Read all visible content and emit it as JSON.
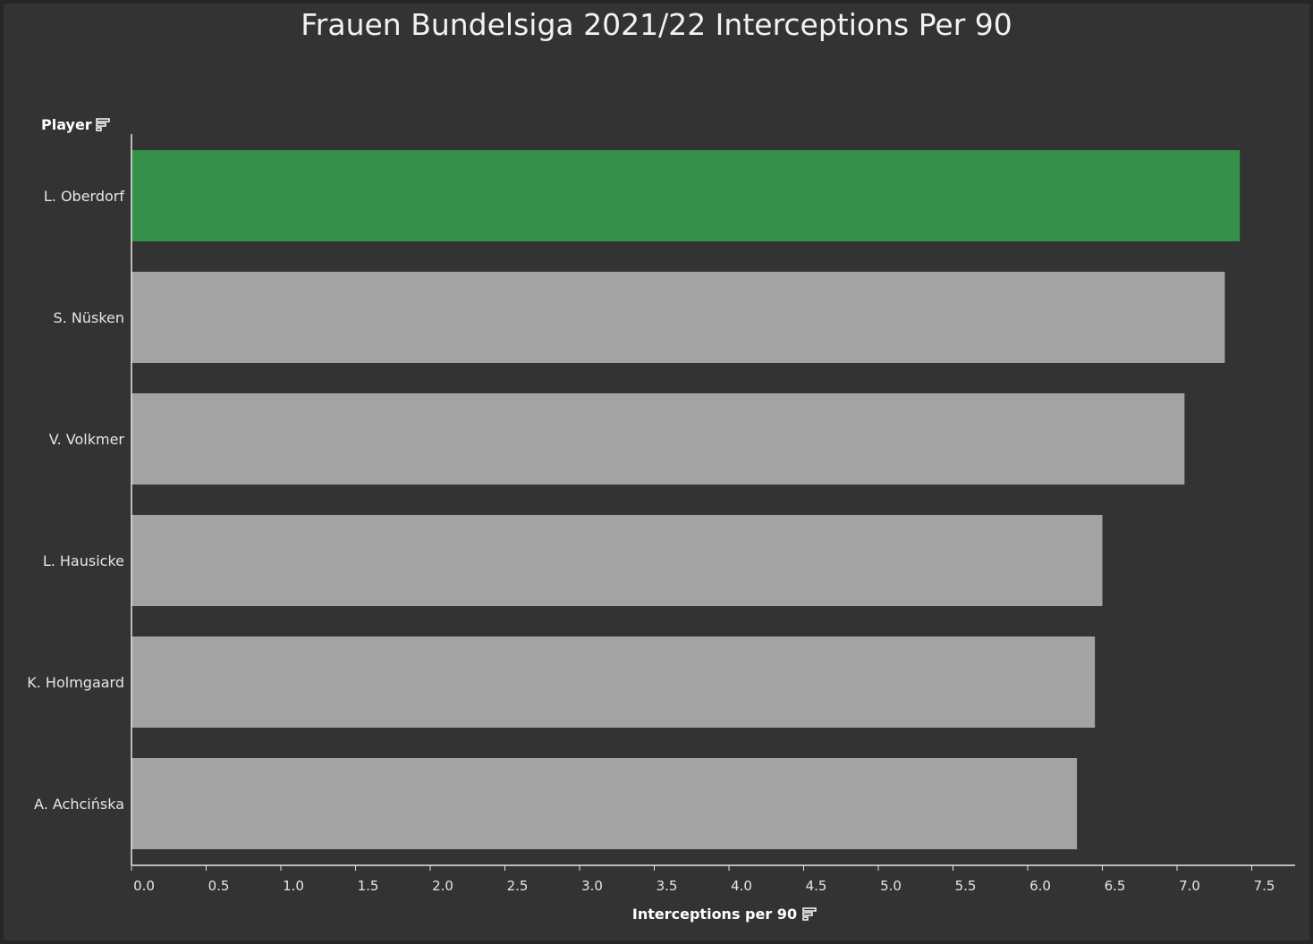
{
  "chart_data": {
    "type": "bar",
    "orientation": "horizontal",
    "title": "Frauen Bundelsiga 2021/22 Interceptions Per 90",
    "ylabel": "Player",
    "xlabel": "Interceptions per 90",
    "categories": [
      "L. Oberdorf",
      "S. Nüsken",
      "V. Volkmer",
      "L. Hausicke",
      "K. Holmgaard",
      "A. Achcińska"
    ],
    "values": [
      7.42,
      7.32,
      7.05,
      6.5,
      6.45,
      6.33
    ],
    "highlight_index": 0,
    "xlim": [
      0,
      7.8
    ],
    "xticks": [
      "0.0",
      "0.5",
      "1.0",
      "1.5",
      "2.0",
      "2.5",
      "3.0",
      "3.5",
      "4.0",
      "4.5",
      "5.0",
      "5.5",
      "6.0",
      "6.5",
      "7.0",
      "7.5"
    ],
    "grid": false,
    "colors": {
      "background": "#333333",
      "highlight_bar": "#35904a",
      "bar": "#a3a3a3",
      "axis": "#e6e6e6",
      "text": "#e6e6e6"
    }
  },
  "icons": {
    "row_header_sort": "sort-descending-icon",
    "axis_title_sort": "sort-descending-icon"
  }
}
